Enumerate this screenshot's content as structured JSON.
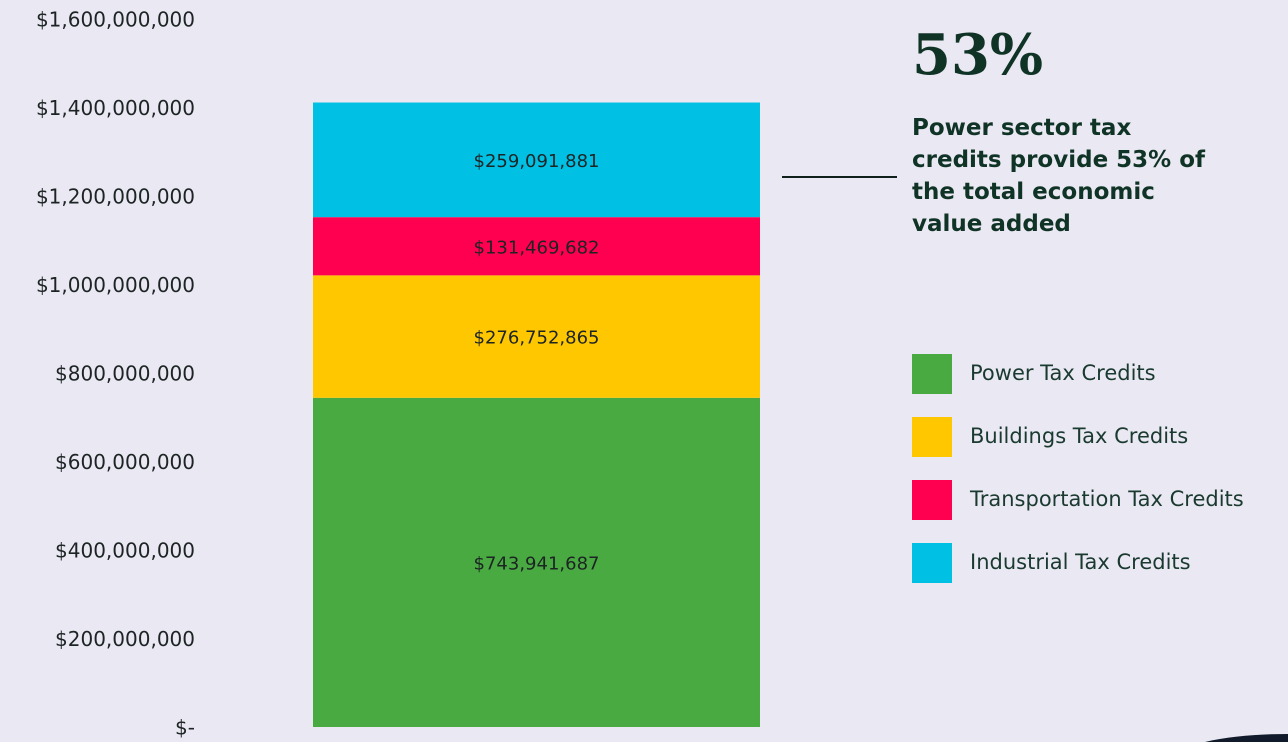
{
  "chart_data": {
    "type": "stacked_bar",
    "annotation_value": "53%",
    "annotation_text": "Power sector tax credits provide 53% of the total economic value added",
    "categories": [
      null
    ],
    "series": [
      {
        "name": "Power Tax Credits",
        "color": "#4aaa42",
        "values": [
          743941687
        ],
        "value_labels": [
          "$743,941,687"
        ]
      },
      {
        "name": "Buildings Tax Credits",
        "color": "#ffc700",
        "values": [
          276752865
        ],
        "value_labels": [
          "$276,752,865"
        ]
      },
      {
        "name": "Transportation Tax Credits",
        "color": "#ff0050",
        "values": [
          131469682
        ],
        "value_labels": [
          "$131,469,682"
        ]
      },
      {
        "name": "Industrial Tax Credits",
        "color": "#00c0e4",
        "values": [
          259091881
        ],
        "value_labels": [
          "$259,091,881"
        ]
      }
    ],
    "ylim": [
      0,
      1600000000
    ],
    "yticks": [
      {
        "value": 0,
        "label": "$-"
      },
      {
        "value": 200000000,
        "label": "$200,000,000"
      },
      {
        "value": 400000000,
        "label": "$400,000,000"
      },
      {
        "value": 600000000,
        "label": "$600,000,000"
      },
      {
        "value": 800000000,
        "label": "$800,000,000"
      },
      {
        "value": 1000000000,
        "label": "$1,000,000,000"
      },
      {
        "value": 1200000000,
        "label": "$1,200,000,000"
      },
      {
        "value": 1400000000,
        "label": "$1,400,000,000"
      },
      {
        "value": 1600000000,
        "label": "$1,600,000,000"
      }
    ]
  }
}
